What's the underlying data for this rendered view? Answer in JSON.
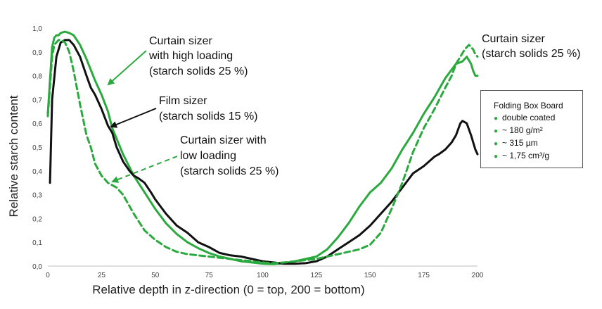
{
  "chart_data": {
    "type": "line",
    "xlabel": "Relative depth in z-direction (0 = top, 200 = bottom)",
    "ylabel": "Relative starch content",
    "xlim": [
      0,
      200
    ],
    "ylim": [
      0,
      1.0
    ],
    "x_ticks": [
      "0",
      "25",
      "50",
      "75",
      "100",
      "125",
      "150",
      "175",
      "200"
    ],
    "y_ticks": [
      "0,0",
      "0,1",
      "0,2",
      "0,3",
      "0,4",
      "0,5",
      "0,6",
      "0,7",
      "0,8",
      "0,9",
      "1,0"
    ],
    "grid": false,
    "series": [
      {
        "color": "#2aaa3e",
        "style": "solid",
        "x": [
          0,
          2,
          3,
          4,
          5,
          6,
          8,
          10,
          12,
          15,
          18,
          22,
          25,
          28,
          30,
          35,
          40,
          45,
          50,
          55,
          60,
          65,
          70,
          75,
          80,
          85,
          90,
          95,
          100,
          105,
          110,
          115,
          120,
          125,
          130,
          135,
          140,
          145,
          150,
          155,
          160,
          165,
          170,
          175,
          180,
          185,
          190,
          193,
          195,
          197,
          198,
          199,
          200
        ],
        "y": [
          0.64,
          0.92,
          0.96,
          0.97,
          0.97,
          0.98,
          0.985,
          0.98,
          0.97,
          0.93,
          0.87,
          0.78,
          0.72,
          0.65,
          0.58,
          0.47,
          0.38,
          0.31,
          0.24,
          0.18,
          0.135,
          0.1,
          0.075,
          0.055,
          0.04,
          0.03,
          0.02,
          0.015,
          0.01,
          0.008,
          0.012,
          0.02,
          0.03,
          0.04,
          0.07,
          0.12,
          0.18,
          0.25,
          0.31,
          0.35,
          0.41,
          0.49,
          0.56,
          0.64,
          0.71,
          0.79,
          0.85,
          0.86,
          0.88,
          0.85,
          0.82,
          0.8,
          0.8
        ]
      },
      {
        "color": "#111111",
        "style": "solid",
        "x": [
          1,
          2,
          4,
          6,
          8,
          10,
          12,
          15,
          18,
          20,
          22,
          25,
          28,
          30,
          32,
          35,
          38,
          40,
          42,
          45,
          48,
          50,
          55,
          60,
          65,
          70,
          75,
          80,
          85,
          90,
          95,
          100,
          105,
          110,
          115,
          120,
          125,
          130,
          135,
          140,
          145,
          150,
          155,
          160,
          165,
          170,
          175,
          180,
          182,
          185,
          188,
          190,
          192,
          193,
          195,
          197,
          199,
          200
        ],
        "y": [
          0.35,
          0.7,
          0.88,
          0.94,
          0.95,
          0.95,
          0.93,
          0.88,
          0.8,
          0.75,
          0.72,
          0.66,
          0.59,
          0.56,
          0.5,
          0.44,
          0.4,
          0.38,
          0.37,
          0.35,
          0.31,
          0.28,
          0.22,
          0.17,
          0.14,
          0.1,
          0.08,
          0.055,
          0.045,
          0.04,
          0.03,
          0.02,
          0.015,
          0.01,
          0.01,
          0.012,
          0.02,
          0.04,
          0.07,
          0.1,
          0.13,
          0.17,
          0.22,
          0.27,
          0.33,
          0.39,
          0.42,
          0.46,
          0.47,
          0.49,
          0.52,
          0.55,
          0.6,
          0.61,
          0.6,
          0.55,
          0.49,
          0.47
        ]
      },
      {
        "color": "#2aaa3e",
        "style": "dashed",
        "x": [
          0,
          2,
          3,
          4,
          5,
          6,
          8,
          10,
          12,
          15,
          18,
          20,
          22,
          25,
          28,
          30,
          32,
          35,
          40,
          45,
          50,
          55,
          60,
          65,
          70,
          75,
          80,
          85,
          90,
          95,
          100,
          105,
          110,
          115,
          120,
          125,
          130,
          135,
          140,
          145,
          150,
          155,
          160,
          165,
          170,
          175,
          180,
          185,
          188,
          190,
          192,
          194,
          196,
          197,
          198,
          199,
          200
        ],
        "y": [
          0.63,
          0.88,
          0.93,
          0.94,
          0.95,
          0.95,
          0.94,
          0.9,
          0.82,
          0.68,
          0.55,
          0.5,
          0.43,
          0.38,
          0.35,
          0.34,
          0.33,
          0.3,
          0.22,
          0.15,
          0.11,
          0.08,
          0.06,
          0.05,
          0.045,
          0.04,
          0.035,
          0.03,
          0.025,
          0.02,
          0.015,
          0.012,
          0.015,
          0.02,
          0.025,
          0.03,
          0.04,
          0.05,
          0.06,
          0.07,
          0.09,
          0.14,
          0.24,
          0.35,
          0.48,
          0.58,
          0.66,
          0.75,
          0.8,
          0.85,
          0.88,
          0.91,
          0.93,
          0.92,
          0.91,
          0.89,
          0.88
        ]
      }
    ],
    "annotations": [
      {
        "lines": [
          "Curtain sizer",
          "with high loading",
          "(starch solids 25 %)"
        ]
      },
      {
        "lines": [
          "Film sizer",
          "(starch solids 15 %)"
        ]
      },
      {
        "lines": [
          "Curtain sizer with",
          "low loading",
          "(starch solids 25 %)"
        ]
      },
      {
        "lines": [
          "Curtain sizer",
          "(starch solids 25 %)"
        ]
      }
    ]
  },
  "infobox": {
    "title": "Folding Box Board",
    "items": [
      "double coated",
      "~ 180 g/m²",
      "~ 315 µm",
      "~ 1,75 cm³/g"
    ]
  }
}
